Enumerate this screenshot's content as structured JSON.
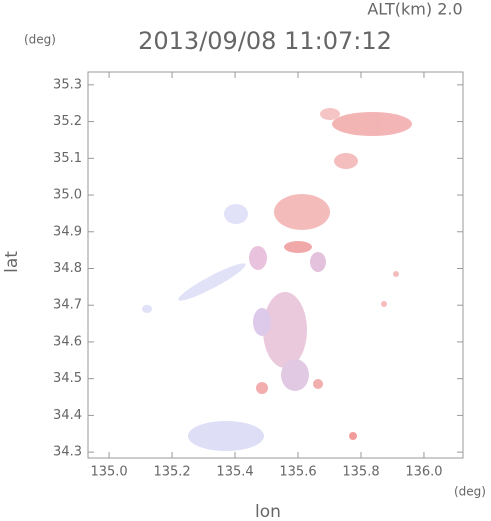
{
  "chart_data": {
    "type": "map",
    "title": "2013/09/08 11:07:12",
    "subtitle": "ALT(km) 2.0",
    "x_label": "lon",
    "y_label": "lat",
    "x_unit": "(deg)",
    "y_unit": "(deg)",
    "xlim": [
      134.933,
      136.124
    ],
    "ylim": [
      34.284,
      35.335
    ],
    "xticks": [
      {
        "value": 135,
        "label": "135.0"
      },
      135.2,
      135.4,
      135.6,
      135.8,
      {
        "value": 136,
        "label": "136.0"
      }
    ],
    "yticks": [
      34.3,
      34.4,
      34.5,
      34.6,
      34.7,
      34.8,
      34.9,
      {
        "value": 35,
        "label": "35.0"
      },
      35.1,
      35.2,
      35.3
    ],
    "frame_color": "#999999"
  }
}
